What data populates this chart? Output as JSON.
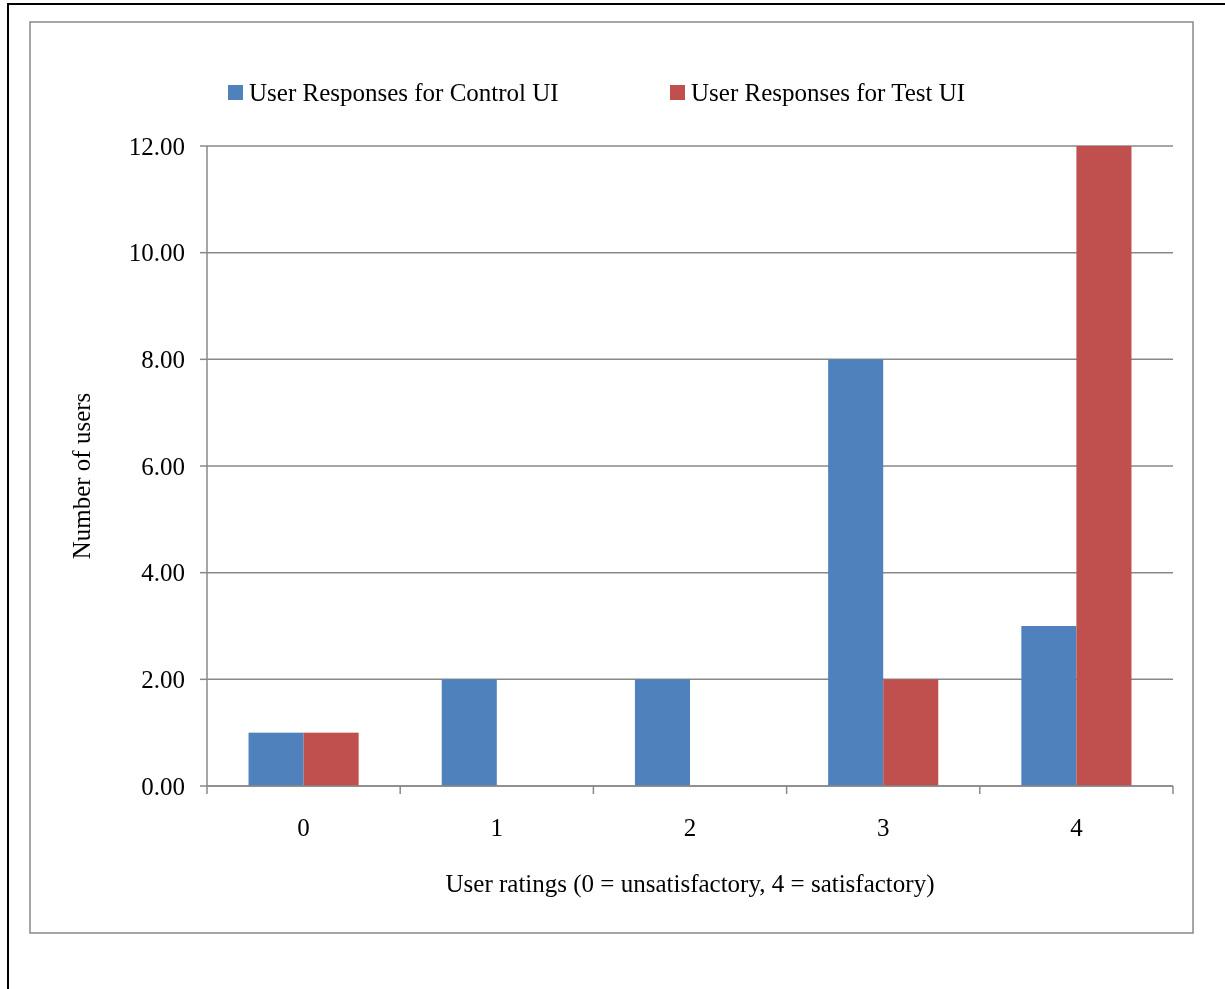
{
  "chart_data": {
    "type": "bar",
    "xlabel": "User ratings (0 = unsatisfactory, 4  = satisfactory)",
    "ylabel": "Number of users",
    "categories": [
      "0",
      "1",
      "2",
      "3",
      "4"
    ],
    "series": [
      {
        "name": "User Responses for Control UI",
        "color": "#4f81bd",
        "values": [
          1,
          2,
          2,
          8,
          3
        ]
      },
      {
        "name": "User Responses for Test UI",
        "color": "#c0504d",
        "values": [
          1,
          0,
          0,
          2,
          12
        ]
      }
    ],
    "ylim": [
      0,
      12
    ],
    "yticks": [
      {
        "value": 0,
        "label": "0.00"
      },
      {
        "value": 2,
        "label": "2.00"
      },
      {
        "value": 4,
        "label": "4.00"
      },
      {
        "value": 6,
        "label": "6.00"
      },
      {
        "value": 8,
        "label": "8.00"
      },
      {
        "value": 10,
        "label": "10.00"
      },
      {
        "value": 12,
        "label": "12.00"
      }
    ],
    "grid": "y",
    "legend": "top"
  }
}
